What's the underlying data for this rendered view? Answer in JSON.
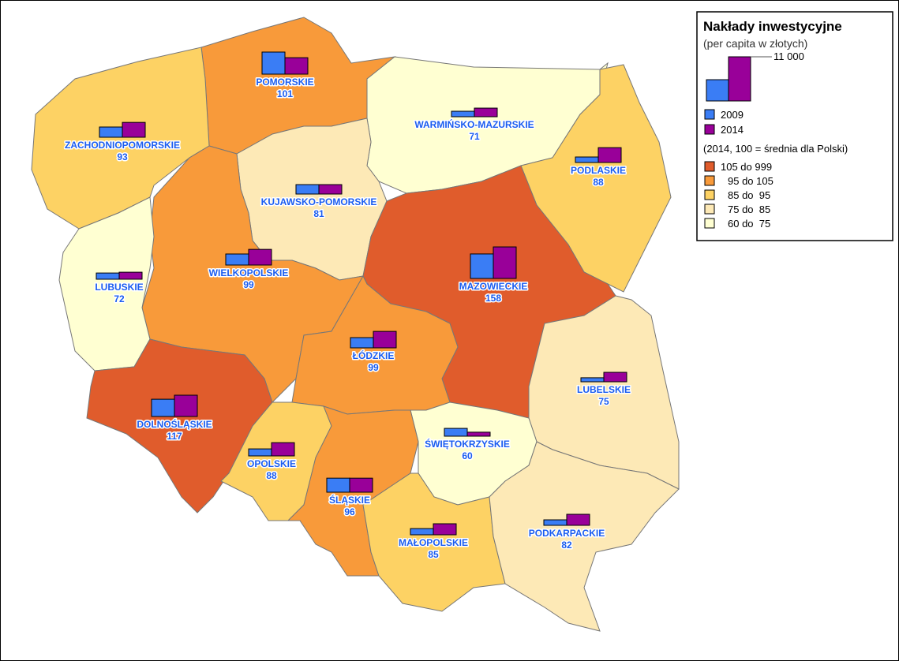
{
  "legend": {
    "title": "Nakłady inwestycyjne",
    "subtitle": "(per capita w złotych)",
    "scale": {
      "values": [
        5300,
        11000
      ],
      "label": "11 000"
    },
    "series": [
      {
        "name": "2009",
        "color": "#3a7df5"
      },
      {
        "name": "2014",
        "color": "#990099"
      }
    ],
    "classes_title": "(2014, 100 = średnia dla Polski)",
    "classes": [
      {
        "label": "105 do 999",
        "color": "#e05c2c"
      },
      {
        "label": "95 do 105",
        "color": "#f89a3a"
      },
      {
        "label": "85 do  95",
        "color": "#fdd264"
      },
      {
        "label": "75 do  85",
        "color": "#fde9b6"
      },
      {
        "label": "60 do  75",
        "color": "#ffffd2"
      }
    ]
  },
  "regions": [
    {
      "name": "POMORSKIE",
      "index": 101,
      "values": [
        5500,
        4100
      ],
      "color": "#f89a3a"
    },
    {
      "name": "ZACHODNIOPOMORSKIE",
      "index": 93,
      "values": [
        2550,
        3700
      ],
      "color": "#fdd264"
    },
    {
      "name": "WARMIŃSKO-MAZURSKIE",
      "index": 71,
      "values": [
        1370,
        2150
      ],
      "color": "#ffffd2"
    },
    {
      "name": "PODLASKIE",
      "index": 88,
      "values": [
        1370,
        3700
      ],
      "color": "#fdd264"
    },
    {
      "name": "KUJAWSKO-POMORSKIE",
      "index": 81,
      "values": [
        2350,
        2350
      ],
      "color": "#fde9b6"
    },
    {
      "name": "WIELKOPOLSKIE",
      "index": 99,
      "values": [
        2750,
        3900
      ],
      "color": "#f89a3a"
    },
    {
      "name": "LUBUSKIE",
      "index": 72,
      "values": [
        1550,
        1750
      ],
      "color": "#ffffd2"
    },
    {
      "name": "MAZOWIECKIE",
      "index": 158,
      "values": [
        6100,
        7850
      ],
      "color": "#e05c2c"
    },
    {
      "name": "ŁÓDZKIE",
      "index": 99,
      "values": [
        2550,
        4100
      ],
      "color": "#f89a3a"
    },
    {
      "name": "LUBELSKIE",
      "index": 75,
      "values": [
        1000,
        2350
      ],
      "color": "#fde9b6"
    },
    {
      "name": "DOLNOŚLĄSKIE",
      "index": 117,
      "values": [
        4300,
        5300
      ],
      "color": "#e05c2c"
    },
    {
      "name": "OPOLSKIE",
      "index": 88,
      "values": [
        1750,
        3300
      ],
      "color": "#fdd264"
    },
    {
      "name": "ŚWIĘTOKRZYSKIE",
      "index": 60,
      "values": [
        1950,
        1000
      ],
      "color": "#ffffd2"
    },
    {
      "name": "ŚLĄSKIE",
      "index": 96,
      "values": [
        3500,
        3500
      ],
      "color": "#f89a3a"
    },
    {
      "name": "MAŁOPOLSKIE",
      "index": 85,
      "values": [
        1550,
        2750
      ],
      "color": "#fdd264"
    },
    {
      "name": "PODKARPACKIE",
      "index": 82,
      "values": [
        1370,
        2750
      ],
      "color": "#fde9b6"
    }
  ]
}
